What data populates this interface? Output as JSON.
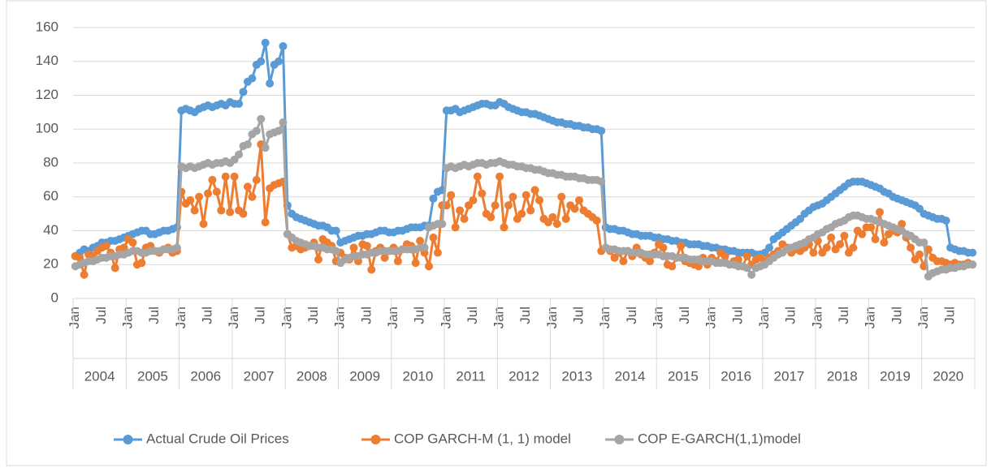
{
  "chart_data": {
    "type": "line",
    "categories": [
      "Jan",
      null,
      null,
      null,
      null,
      null,
      "Jul",
      null,
      null,
      null,
      null,
      null,
      "Jan",
      null,
      null,
      null,
      null,
      null,
      "Jul",
      null,
      null,
      null,
      null,
      null,
      "Jan",
      null,
      null,
      null,
      null,
      null,
      "Jul",
      null,
      null,
      null,
      null,
      null,
      "Jan",
      null,
      null,
      null,
      null,
      null,
      "Jul",
      null,
      null,
      null,
      null,
      null,
      "Jan",
      null,
      null,
      null,
      null,
      null,
      "Jul",
      null,
      null,
      null,
      null,
      null,
      "Jan",
      null,
      null,
      null,
      null,
      null,
      "Jul",
      null,
      null,
      null,
      null,
      null,
      "Jan",
      null,
      null,
      null,
      null,
      null,
      "Jul",
      null,
      null,
      null,
      null,
      null,
      "Jan",
      null,
      null,
      null,
      null,
      null,
      "Jul",
      null,
      null,
      null,
      null,
      null,
      "Jan",
      null,
      null,
      null,
      null,
      null,
      "Jul",
      null,
      null,
      null,
      null,
      null,
      "Jan",
      null,
      null,
      null,
      null,
      null,
      "Jul",
      null,
      null,
      null,
      null,
      null,
      "Jan",
      null,
      null,
      null,
      null,
      null,
      "Jul",
      null,
      null,
      null,
      null,
      null,
      "Jan",
      null,
      null,
      null,
      null,
      null,
      "Jul",
      null,
      null,
      null,
      null,
      null,
      "Jan",
      null,
      null,
      null,
      null,
      null,
      "Jul",
      null,
      null,
      null,
      null,
      null,
      "Jan",
      null,
      null,
      null,
      null,
      null,
      "Jul",
      null,
      null,
      null,
      null,
      null,
      "Jan",
      null,
      null,
      null,
      null,
      null,
      "Jul",
      null,
      null,
      null,
      null,
      null,
      "Jan",
      null,
      null,
      null,
      null,
      null,
      "Jul",
      null,
      null,
      null,
      null,
      null,
      "Jan",
      null,
      null,
      null,
      null,
      null,
      "Jul",
      null,
      null,
      null,
      null,
      null
    ],
    "years": [
      "2004",
      "2005",
      "2006",
      "2007",
      "2008",
      "2009",
      "2010",
      "2011",
      "2012",
      "2013",
      "2014",
      "2015",
      "2016",
      "2017",
      "2018",
      "2019",
      "2020"
    ],
    "series": [
      {
        "name": "Actual Crude Oil Prices",
        "color": "#5b9bd5",
        "values": [
          25,
          27,
          29,
          28,
          30,
          31,
          33,
          33,
          34,
          34,
          35,
          36,
          37,
          38,
          39,
          40,
          40,
          38,
          38,
          39,
          40,
          40,
          41,
          42,
          111,
          112,
          111,
          110,
          112,
          113,
          114,
          113,
          114,
          115,
          114,
          116,
          115,
          115,
          122,
          128,
          130,
          138,
          140,
          151,
          127,
          138,
          140,
          149,
          55,
          50,
          48,
          47,
          46,
          45,
          44,
          43,
          43,
          42,
          40,
          40,
          33,
          34,
          35,
          36,
          37,
          37,
          38,
          38,
          39,
          40,
          40,
          39,
          39,
          40,
          40,
          41,
          42,
          42,
          42,
          43,
          43,
          59,
          63,
          64,
          111,
          111,
          112,
          110,
          111,
          112,
          113,
          114,
          115,
          115,
          114,
          114,
          116,
          115,
          113,
          112,
          111,
          110,
          110,
          109,
          109,
          108,
          107,
          106,
          105,
          104,
          104,
          103,
          103,
          102,
          102,
          101,
          101,
          100,
          100,
          99,
          42,
          41,
          41,
          40,
          40,
          39,
          38,
          38,
          37,
          37,
          37,
          36,
          36,
          35,
          35,
          34,
          34,
          33,
          33,
          32,
          32,
          32,
          31,
          31,
          30,
          30,
          29,
          29,
          28,
          28,
          27,
          27,
          27,
          27,
          26,
          26,
          27,
          30,
          35,
          37,
          39,
          41,
          43,
          45,
          47,
          50,
          52,
          54,
          55,
          56,
          58,
          60,
          62,
          64,
          66,
          68,
          69,
          69,
          69,
          68,
          67,
          66,
          65,
          63,
          62,
          60,
          59,
          58,
          57,
          56,
          55,
          53,
          50,
          49,
          48,
          47,
          47,
          46,
          30,
          29,
          28,
          28,
          27,
          27
        ]
      },
      {
        "name": "COP GARCH-M (1, 1) model",
        "color": "#ed7d31",
        "values": [
          25,
          24,
          14,
          26,
          25,
          28,
          30,
          31,
          27,
          18,
          29,
          30,
          35,
          33,
          20,
          21,
          30,
          31,
          28,
          27,
          29,
          30,
          27,
          28,
          63,
          56,
          58,
          52,
          60,
          44,
          62,
          70,
          63,
          52,
          72,
          51,
          72,
          52,
          50,
          66,
          60,
          70,
          91,
          45,
          65,
          67,
          68,
          69,
          38,
          30,
          31,
          29,
          30,
          31,
          33,
          23,
          35,
          33,
          31,
          22,
          27,
          24,
          23,
          30,
          22,
          32,
          31,
          17,
          28,
          30,
          24,
          28,
          30,
          22,
          29,
          32,
          31,
          21,
          34,
          27,
          19,
          36,
          27,
          55,
          55,
          61,
          42,
          52,
          47,
          55,
          58,
          72,
          62,
          50,
          48,
          55,
          72,
          42,
          55,
          60,
          47,
          50,
          61,
          52,
          64,
          58,
          47,
          45,
          48,
          44,
          60,
          47,
          55,
          53,
          58,
          52,
          50,
          48,
          46,
          28,
          30,
          28,
          24,
          27,
          22,
          28,
          25,
          30,
          26,
          24,
          22,
          27,
          32,
          30,
          20,
          19,
          24,
          31,
          22,
          21,
          20,
          19,
          24,
          20,
          24,
          22,
          27,
          25,
          20,
          22,
          23,
          19,
          25,
          20,
          23,
          24,
          22,
          24,
          26,
          28,
          32,
          30,
          27,
          29,
          28,
          30,
          32,
          27,
          34,
          27,
          30,
          36,
          29,
          32,
          37,
          27,
          30,
          40,
          38,
          42,
          42,
          35,
          51,
          33,
          38,
          40,
          39,
          44,
          36,
          30,
          23,
          26,
          19,
          29,
          24,
          22,
          22,
          21,
          20,
          21,
          20,
          20,
          21,
          20
        ]
      },
      {
        "name": "COP E-GARCH(1,1)model",
        "color": "#a5a5a5",
        "values": [
          19,
          20,
          21,
          22,
          22,
          23,
          24,
          24,
          25,
          25,
          26,
          26,
          27,
          28,
          28,
          27,
          27,
          28,
          28,
          28,
          29,
          29,
          29,
          30,
          78,
          77,
          78,
          77,
          78,
          79,
          80,
          79,
          80,
          80,
          81,
          80,
          82,
          85,
          90,
          91,
          97,
          99,
          106,
          89,
          97,
          98,
          99,
          104,
          38,
          36,
          34,
          33,
          32,
          31,
          31,
          30,
          30,
          29,
          29,
          28,
          21,
          23,
          24,
          25,
          25,
          26,
          26,
          27,
          27,
          28,
          28,
          28,
          28,
          28,
          29,
          29,
          29,
          29,
          30,
          30,
          42,
          43,
          44,
          44,
          77,
          78,
          77,
          78,
          79,
          78,
          79,
          80,
          80,
          79,
          80,
          80,
          81,
          80,
          79,
          79,
          78,
          78,
          77,
          77,
          76,
          76,
          75,
          74,
          74,
          73,
          73,
          72,
          72,
          72,
          71,
          71,
          70,
          70,
          70,
          69,
          30,
          29,
          29,
          28,
          28,
          28,
          27,
          27,
          27,
          26,
          26,
          26,
          26,
          25,
          25,
          25,
          24,
          24,
          24,
          23,
          23,
          23,
          22,
          22,
          22,
          21,
          21,
          21,
          20,
          20,
          19,
          19,
          18,
          14,
          18,
          19,
          20,
          22,
          24,
          26,
          27,
          29,
          30,
          31,
          32,
          33,
          35,
          36,
          38,
          39,
          41,
          42,
          44,
          45,
          46,
          48,
          49,
          49,
          48,
          47,
          47,
          46,
          45,
          44,
          43,
          42,
          41,
          40,
          38,
          37,
          35,
          33,
          33,
          13,
          15,
          16,
          17,
          17,
          18,
          18,
          19,
          19,
          20,
          20
        ]
      }
    ],
    "ylim": [
      0,
      160
    ],
    "yticks": [
      0,
      20,
      40,
      60,
      80,
      100,
      120,
      140,
      160
    ],
    "grid": true,
    "legend": "bottom"
  }
}
